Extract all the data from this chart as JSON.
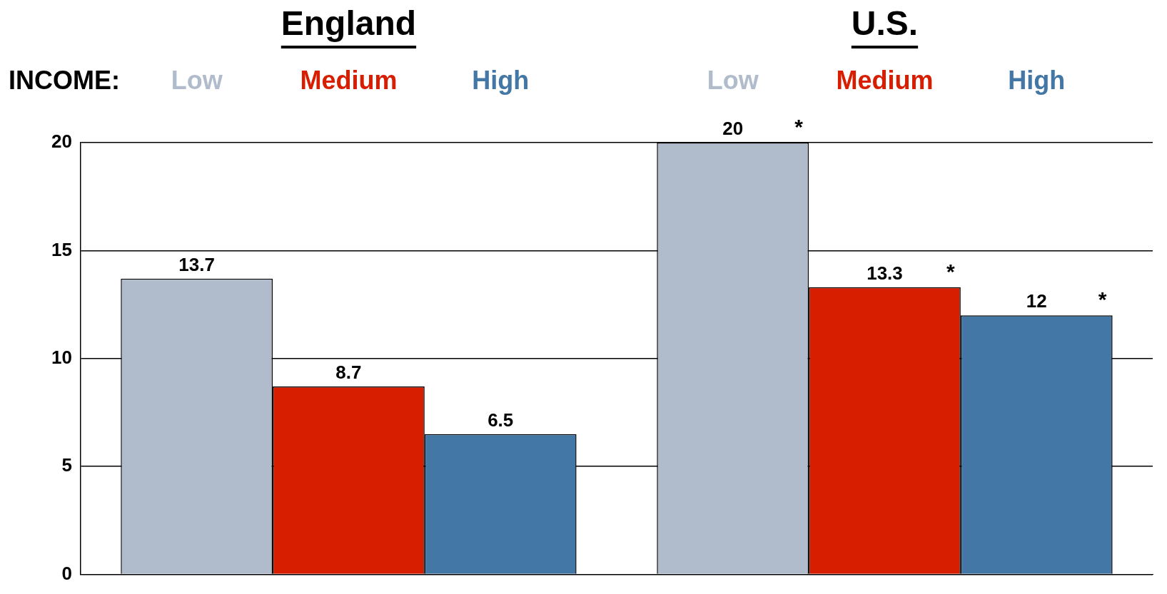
{
  "chart_data": {
    "type": "bar",
    "categories": [
      "England",
      "U.S."
    ],
    "legend_title": "INCOME:",
    "series": [
      {
        "name": "Low",
        "color": "#b0bccb",
        "values": [
          13.7,
          20
        ]
      },
      {
        "name": "Medium",
        "color": "#d81e00",
        "values": [
          8.7,
          13.3
        ]
      },
      {
        "name": "High",
        "color": "#4277a6",
        "values": [
          6.5,
          12
        ]
      }
    ],
    "ylim": [
      0,
      20
    ],
    "yticks": [
      0,
      5,
      10,
      15,
      20
    ],
    "grid": "y",
    "legend": false,
    "data_labels": true,
    "annotations": [
      "*",
      "*",
      "*"
    ]
  }
}
